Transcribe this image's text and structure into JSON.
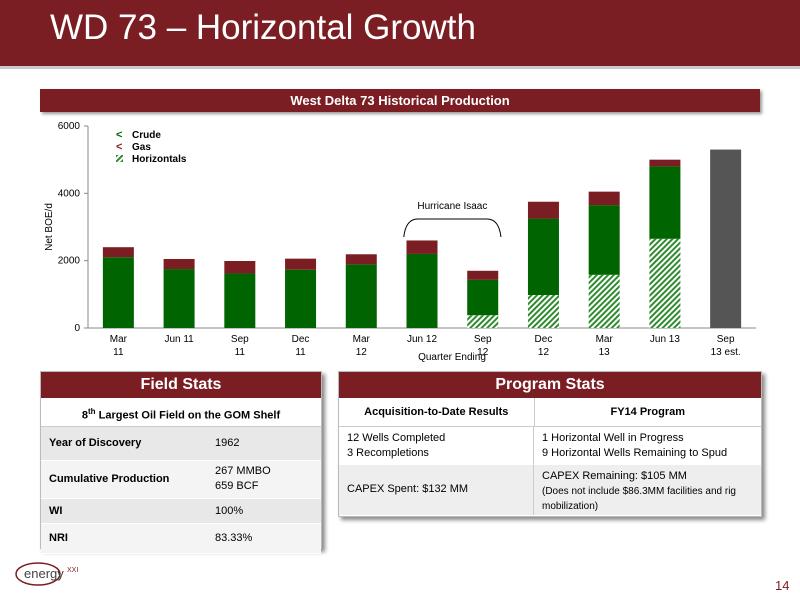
{
  "page_title": "WD 73 – Horizontal Growth",
  "chart_header": "West Delta 73 Historical Production",
  "colors": {
    "brand": "#7a1e24",
    "crude": "#006400",
    "gas": "#7a1e24",
    "horizontals": "#2e8b2e",
    "estimate": "#555555"
  },
  "chart_data": {
    "type": "bar",
    "stacked": true,
    "title": "West Delta 73 Historical Production",
    "xlabel": "Quarter Ending",
    "ylabel": "Net BOE/d",
    "ylim": [
      0,
      6000
    ],
    "yticks": [
      "0",
      "2000",
      "4000",
      "6000"
    ],
    "categories": [
      [
        "Mar",
        "11"
      ],
      [
        "Jun 11",
        ""
      ],
      [
        "Sep",
        "11"
      ],
      [
        "Dec",
        "11"
      ],
      [
        "Mar",
        "12"
      ],
      [
        "Jun 12",
        ""
      ],
      [
        "Sep",
        "12"
      ],
      [
        "Dec",
        "12"
      ],
      [
        "Mar",
        "13"
      ],
      [
        "Jun 13",
        ""
      ],
      [
        "Sep",
        "13 est."
      ]
    ],
    "series": [
      {
        "name": "Horizontals",
        "values": [
          0,
          0,
          0,
          0,
          0,
          0,
          380,
          980,
          1580,
          2650,
          0
        ]
      },
      {
        "name": "Crude",
        "values": [
          2100,
          1750,
          1620,
          1730,
          1890,
          2200,
          1050,
          2270,
          2070,
          2150,
          0
        ]
      },
      {
        "name": "Gas",
        "values": [
          300,
          300,
          370,
          330,
          300,
          400,
          270,
          500,
          400,
          200,
          0
        ]
      },
      {
        "name": "Sep 13 est.",
        "values": [
          0,
          0,
          0,
          0,
          0,
          0,
          0,
          0,
          0,
          0,
          5300
        ]
      }
    ],
    "legend": [
      "Crude",
      "Gas",
      "Horizontals"
    ],
    "legend_position": "top-left",
    "annotation": "Hurricane Isaac"
  },
  "field_stats": {
    "title": "Field Stats",
    "subtitle_pre": "8",
    "subtitle_sup": "th",
    "subtitle_post": " Largest Oil Field on the GOM Shelf",
    "rows": [
      {
        "label": "Year of Discovery",
        "value": "1962"
      },
      {
        "label": "Cumulative Production",
        "value": "267 MMBO",
        "value2": "659 BCF"
      },
      {
        "label": "WI",
        "value": "100%"
      },
      {
        "label": "NRI",
        "value": "83.33%"
      }
    ]
  },
  "program_stats": {
    "title": "Program Stats",
    "col1": "Acquisition-to-Date Results",
    "col2": "FY14 Program",
    "r1c1a": "12 Wells Completed",
    "r1c1b": "3 Recompletions",
    "r1c2a": "1 Horizontal Well in Progress",
    "r1c2b": "9 Horizontal Wells Remaining to Spud",
    "r2c1": "CAPEX Spent: $132 MM",
    "r2c2a": "CAPEX Remaining: $105 MM",
    "r2c2b": "(Does not include $86.3MM facilities and rig mobilization)"
  },
  "logo_text": "energyXXI",
  "page_number": "14"
}
